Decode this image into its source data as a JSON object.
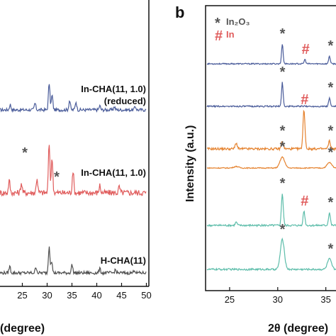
{
  "chart_data": [
    {
      "type": "line",
      "panel": "a",
      "xlabel": "(degree)",
      "xticks": [
        25,
        30,
        35,
        40,
        45,
        50
      ],
      "xlim": [
        20,
        50
      ],
      "series": [
        {
          "name": "In-CHA(11, 1.0)",
          "name2": "(reduced)",
          "color": "#4a5c9a",
          "peaks": [
            [
              30.6,
              1.0
            ],
            [
              31.2,
              0.55
            ],
            [
              34.8,
              0.35
            ],
            [
              36.1,
              0.3
            ],
            [
              27.7,
              0.25
            ],
            [
              22.6,
              0.2
            ],
            [
              41.0,
              0.15
            ],
            [
              44.0,
              0.12
            ],
            [
              48.3,
              0.12
            ]
          ],
          "marker_text": "",
          "marker_x": null
        },
        {
          "name": "In-CHA(11, 1.0)",
          "name2": "",
          "color": "#e05c5c",
          "peaks": [
            [
              30.6,
              1.0
            ],
            [
              31.2,
              0.7
            ],
            [
              35.5,
              0.45
            ],
            [
              22.4,
              0.25
            ],
            [
              28.1,
              0.3
            ],
            [
              41.0,
              0.15
            ],
            [
              24.9,
              0.2
            ],
            [
              45.0,
              0.12
            ]
          ],
          "marker_text": "*",
          "marker_x": [
            30.0,
            35.8
          ]
        },
        {
          "name": "H-CHA(11)",
          "name2": "",
          "color": "#4f4f4f",
          "peaks": [
            [
              30.6,
              1.0
            ],
            [
              31.1,
              0.45
            ],
            [
              35.3,
              0.3
            ],
            [
              22.5,
              0.25
            ],
            [
              27.9,
              0.22
            ],
            [
              41.0,
              0.15
            ],
            [
              44.2,
              0.12
            ],
            [
              48.1,
              0.12
            ]
          ],
          "marker_text": "",
          "marker_x": null
        }
      ]
    },
    {
      "type": "line",
      "panel": "b",
      "ylabel": "Intensity (a.u.)",
      "xlabel": "2θ (degree)",
      "xticks": [
        25,
        30,
        35
      ],
      "xlim": [
        22.5,
        36
      ],
      "legend": [
        {
          "symbol": "*",
          "text": "In₂O₃",
          "color": "#555555"
        },
        {
          "symbol": "#",
          "text": "In",
          "color": "#e05c5c"
        }
      ],
      "series": [
        {
          "color": "#4a5c9a",
          "peaks": [
            [
              30.5,
              1.0
            ],
            [
              32.9,
              0.22
            ],
            [
              35.5,
              0.4
            ]
          ]
        },
        {
          "color": "#4a5c9a",
          "peaks": [
            [
              30.5,
              1.0
            ],
            [
              35.5,
              0.35
            ]
          ]
        },
        {
          "color": "#e5822e",
          "peaks": [
            [
              32.8,
              1.0
            ],
            [
              30.5,
              0.2
            ],
            [
              25.6,
              0.15
            ],
            [
              35.5,
              0.2
            ]
          ]
        },
        {
          "color": "#e5822e",
          "peaks": [
            [
              30.5,
              0.7
            ],
            [
              25.6,
              0.1
            ],
            [
              35.5,
              0.35
            ]
          ]
        },
        {
          "color": "#5dbdaa",
          "peaks": [
            [
              30.5,
              1.0
            ],
            [
              32.8,
              0.45
            ],
            [
              35.5,
              0.4
            ],
            [
              25.6,
              0.1
            ]
          ]
        },
        {
          "color": "#5dbdaa",
          "peaks": [
            [
              30.5,
              1.0
            ],
            [
              35.5,
              0.35
            ]
          ]
        }
      ],
      "markers_b": [
        {
          "series": 0,
          "x": 30.5,
          "text": "*"
        },
        {
          "series": 0,
          "x": 32.9,
          "text": "#"
        },
        {
          "series": 0,
          "x": 35.5,
          "text": "*"
        },
        {
          "series": 1,
          "x": 30.5,
          "text": "*"
        },
        {
          "series": 1,
          "x": 35.5,
          "text": "*"
        },
        {
          "series": 2,
          "x": 32.8,
          "text": "#"
        },
        {
          "series": 2,
          "x": 30.5,
          "text": "*"
        },
        {
          "series": 2,
          "x": 35.5,
          "text": "*"
        },
        {
          "series": 3,
          "x": 30.5,
          "text": "*"
        },
        {
          "series": 3,
          "x": 35.5,
          "text": "*"
        },
        {
          "series": 4,
          "x": 30.5,
          "text": "*"
        },
        {
          "series": 4,
          "x": 32.8,
          "text": "#"
        },
        {
          "series": 4,
          "x": 35.5,
          "text": "*"
        },
        {
          "series": 5,
          "x": 30.5,
          "text": "*"
        },
        {
          "series": 5,
          "x": 35.5,
          "text": "*"
        }
      ]
    }
  ],
  "panel_labels": {
    "b": "b"
  }
}
